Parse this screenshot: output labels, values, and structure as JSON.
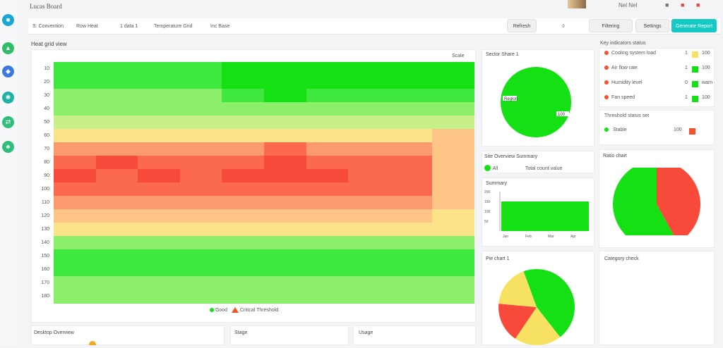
{
  "app": {
    "brand": "Lucas Board",
    "user_name": "Nel Nel",
    "avatar": "avatar"
  },
  "rail": [
    {
      "icon": "document-icon",
      "color": "#1aa7d6"
    },
    {
      "icon": "leaf-icon",
      "color": "#2fbd6a"
    },
    {
      "icon": "book-icon",
      "color": "#3b7be0"
    },
    {
      "icon": "branch-icon",
      "color": "#1db3a4"
    },
    {
      "icon": "shuffle-icon",
      "color": "#2fbf7a"
    },
    {
      "icon": "tree-icon",
      "color": "#2fbf7a"
    }
  ],
  "toolbar": {
    "crumbs": [
      "S: Convention",
      "Row Heat",
      "1 data 1",
      "Temperature Grid",
      "Inc Base"
    ],
    "btn_refresh": "Refresh",
    "btn_filter": "Filtering",
    "btn_settings": "Settings",
    "btn_primary": "Generate Report"
  },
  "heatmap": {
    "title": "Heat grid view",
    "corner_label": "Scale",
    "row_labels": [
      "10",
      "20",
      "30",
      "40",
      "50",
      "60",
      "70",
      "80",
      "90",
      "100",
      "110",
      "120",
      "130",
      "140",
      "150",
      "160",
      "170",
      "180"
    ],
    "legend_green": "Good",
    "legend_red": "Critical  Threshold",
    "grid": [
      [
        2,
        2,
        2,
        2,
        1,
        1,
        1,
        1,
        1,
        1
      ],
      [
        2,
        2,
        2,
        2,
        1,
        1,
        1,
        1,
        1,
        1
      ],
      [
        3,
        3,
        3,
        3,
        2,
        1,
        2,
        2,
        2,
        2
      ],
      [
        3,
        3,
        3,
        3,
        3,
        3,
        3,
        3,
        3,
        3
      ],
      [
        4,
        4,
        4,
        4,
        4,
        4,
        4,
        4,
        4,
        4
      ],
      [
        5,
        5,
        5,
        5,
        5,
        5,
        5,
        5,
        5,
        6
      ],
      [
        7,
        7,
        7,
        7,
        7,
        8,
        7,
        7,
        7,
        6
      ],
      [
        8,
        9,
        8,
        8,
        8,
        9,
        8,
        8,
        8,
        6
      ],
      [
        9,
        8,
        9,
        8,
        9,
        9,
        9,
        8,
        8,
        6
      ],
      [
        8,
        8,
        8,
        8,
        8,
        8,
        8,
        8,
        8,
        6
      ],
      [
        7,
        7,
        7,
        7,
        7,
        7,
        7,
        7,
        7,
        6
      ],
      [
        6,
        6,
        6,
        6,
        6,
        6,
        6,
        6,
        6,
        5
      ],
      [
        5,
        5,
        5,
        5,
        5,
        5,
        5,
        5,
        5,
        5
      ],
      [
        3,
        3,
        3,
        3,
        3,
        3,
        3,
        3,
        3,
        3
      ],
      [
        2,
        2,
        2,
        2,
        2,
        2,
        2,
        2,
        2,
        2
      ],
      [
        2,
        2,
        2,
        2,
        2,
        2,
        2,
        2,
        2,
        2
      ],
      [
        3,
        3,
        3,
        3,
        3,
        3,
        3,
        3,
        3,
        3
      ],
      [
        3,
        3,
        3,
        3,
        3,
        3,
        3,
        3,
        3,
        3
      ]
    ],
    "palette": [
      "#ffffff",
      "#14e014",
      "#3ee83e",
      "#8cef6a",
      "#c8f08a",
      "#fbe187",
      "#fcc485",
      "#fb9a6e",
      "#fb6a4e",
      "#f84a3a"
    ]
  },
  "pie1": {
    "title": "Sector Share 1",
    "label": "Region",
    "value": 100,
    "color": "#14e014"
  },
  "bar_card": {
    "title": "Site Overview Summary",
    "legend_label": "All",
    "legend_value": "Total count value",
    "chart_title": "Summary",
    "y_ticks": [
      "200",
      "150",
      "100",
      "50"
    ],
    "x_ticks": [
      "Jan",
      "Feb",
      "Mar",
      "Apr"
    ],
    "bar_value": 150,
    "bar_color": "#14e014"
  },
  "pie3": {
    "title": "Pie chart 1",
    "slices": [
      {
        "value": 45,
        "color": "#14e014"
      },
      {
        "value": 20,
        "color": "#f6e260"
      },
      {
        "value": 17,
        "color": "#f84a3a"
      },
      {
        "value": 18,
        "color": "#f6e260"
      }
    ]
  },
  "status_list": {
    "title": "Key indicators status",
    "rows": [
      {
        "dot": "#f0532d",
        "label": "Cooling system load",
        "num": "1",
        "sw": "#f6e260",
        "val": "100"
      },
      {
        "dot": "#f0532d",
        "label": "Air flow rate",
        "num": "1",
        "sw": "#14e014",
        "val": "100"
      },
      {
        "dot": "#f0532d",
        "label": "Humidity level",
        "num": "0",
        "sw": "#14e014",
        "val": "warn"
      },
      {
        "dot": "#f0532d",
        "label": "Fan speed",
        "num": "1",
        "sw": "#14e014",
        "val": "100"
      }
    ],
    "group2_title": "Threshold status set",
    "group2_row": {
      "dot": "#14e014",
      "label": "Stable",
      "num": "100",
      "sw": "#f0532d"
    }
  },
  "pie2": {
    "title": "Ratio chart",
    "slices": [
      {
        "value": 58,
        "color": "#14e014"
      },
      {
        "value": 42,
        "color": "#f84a3a"
      }
    ]
  },
  "bottom": {
    "card1": "Desktop Overview",
    "card2": "Stage",
    "card3": "Usage",
    "card4": "Category check"
  }
}
